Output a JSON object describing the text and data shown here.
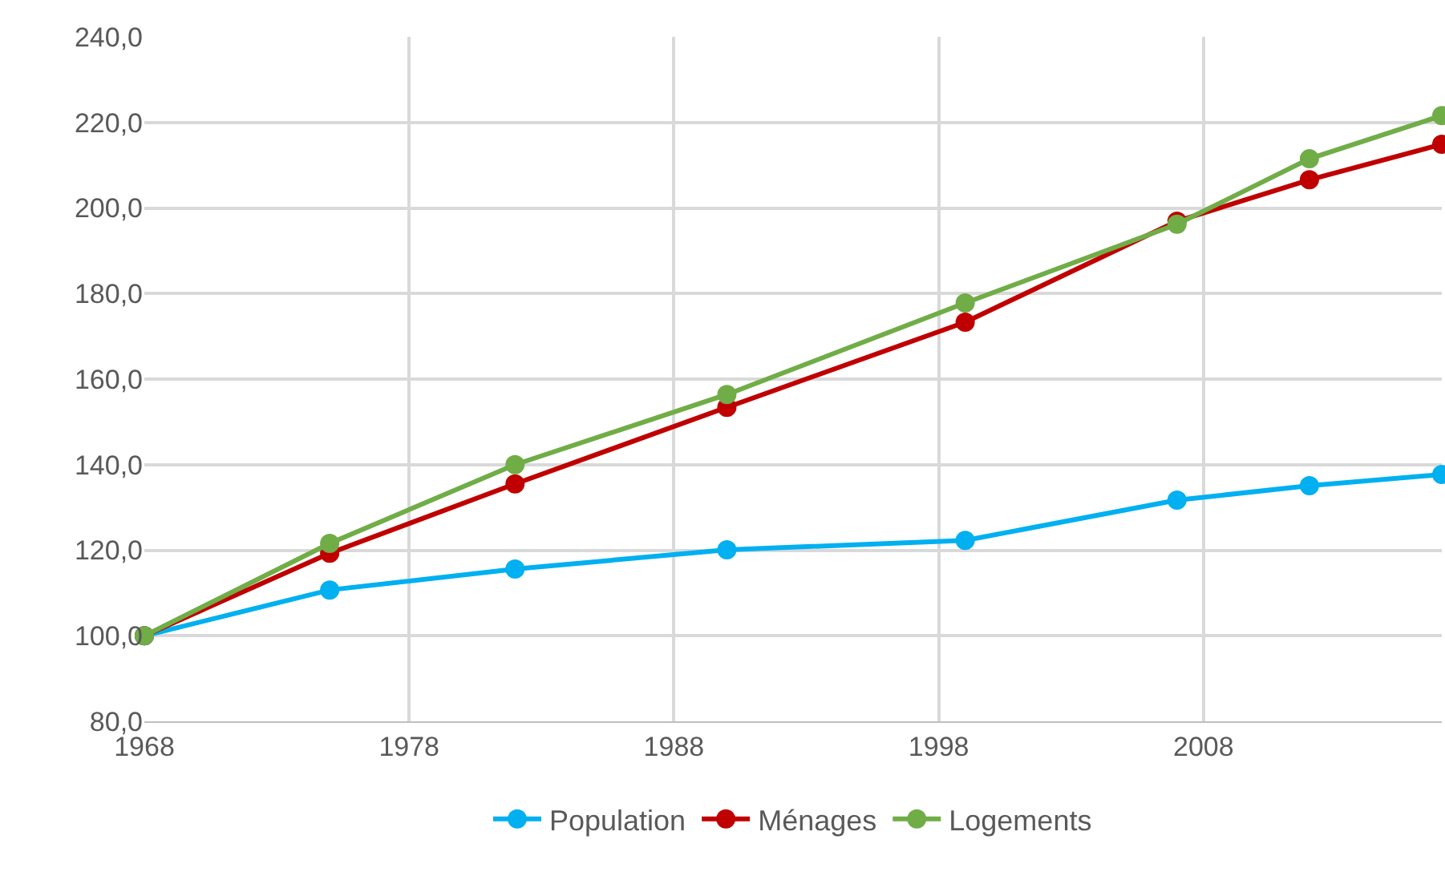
{
  "chart_data": {
    "type": "line",
    "x": [
      1968,
      1975,
      1982,
      1990,
      1999,
      2007,
      2012,
      2017
    ],
    "series": [
      {
        "name": "Population",
        "color": "#00b0f0",
        "values": [
          100,
          110.7,
          115.6,
          120.1,
          122.3,
          131.7,
          135.1,
          137.7
        ]
      },
      {
        "name": "Ménages",
        "color": "#c00000",
        "values": [
          100,
          119.3,
          135.5,
          153.4,
          173.3,
          196.9,
          206.6,
          214.9
        ]
      },
      {
        "name": "Logements",
        "color": "#70ad47",
        "values": [
          100,
          121.6,
          140,
          156.4,
          177.8,
          196.2,
          211.5,
          221.6
        ]
      }
    ],
    "xlim": [
      1968,
      2017
    ],
    "xticks": [
      1968,
      1978,
      1988,
      1998,
      2008
    ],
    "ylim": [
      80,
      240
    ],
    "yticks": [
      {
        "value": 80,
        "label": "80,0"
      },
      {
        "value": 100,
        "label": "100,0"
      },
      {
        "value": 120,
        "label": "120,0"
      },
      {
        "value": 140,
        "label": "140,0"
      },
      {
        "value": 160,
        "label": "160,0"
      },
      {
        "value": 180,
        "label": "180,0"
      },
      {
        "value": 200,
        "label": "200,0"
      },
      {
        "value": 220,
        "label": "220,0"
      },
      {
        "value": 240,
        "label": "240,0"
      }
    ],
    "grid": true,
    "legend": "bottom",
    "marker": "circle",
    "line_style": "solid"
  }
}
